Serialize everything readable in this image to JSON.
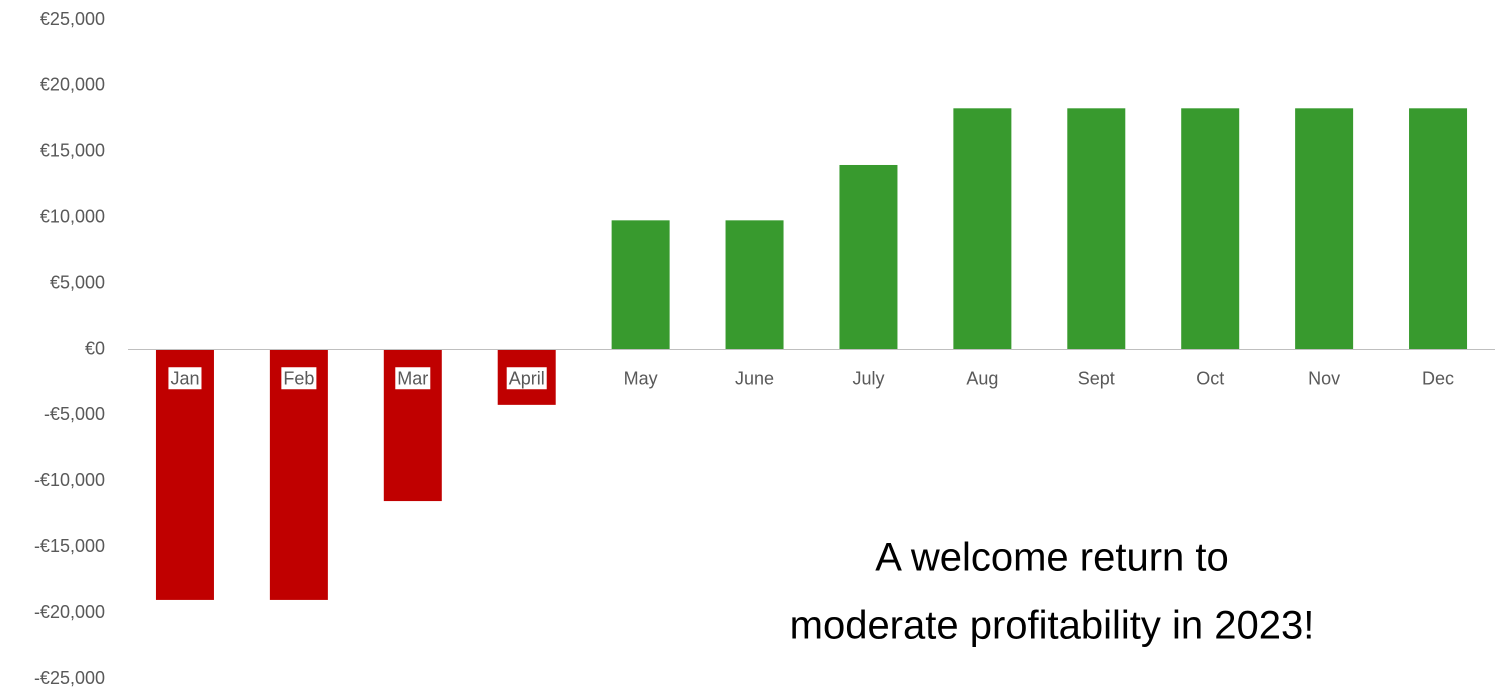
{
  "chart_data": {
    "type": "bar",
    "categories": [
      "Jan",
      "Feb",
      "Mar",
      "April",
      "May",
      "June",
      "July",
      "Aug",
      "Sept",
      "Oct",
      "Nov",
      "Dec"
    ],
    "values": [
      -19000,
      -19000,
      -11500,
      -4200,
      9800,
      9800,
      14000,
      18300,
      18300,
      18300,
      18300,
      18300
    ],
    "colors": [
      "#c00000",
      "#c00000",
      "#c00000",
      "#c00000",
      "#389a2e",
      "#389a2e",
      "#389a2e",
      "#389a2e",
      "#389a2e",
      "#389a2e",
      "#389a2e",
      "#389a2e"
    ],
    "ylim": [
      -25000,
      25000
    ],
    "yticks": [
      {
        "value": -25000,
        "label": "-€25,000"
      },
      {
        "value": -20000,
        "label": "-€20,000"
      },
      {
        "value": -15000,
        "label": "-€15,000"
      },
      {
        "value": -10000,
        "label": "-€10,000"
      },
      {
        "value": -5000,
        "label": "-€5,000"
      },
      {
        "value": 0,
        "label": "€0"
      },
      {
        "value": 5000,
        "label": "€5,000"
      },
      {
        "value": 10000,
        "label": "€10,000"
      },
      {
        "value": 15000,
        "label": "€15,000"
      },
      {
        "value": 20000,
        "label": "€20,000"
      },
      {
        "value": 25000,
        "label": "€25,000"
      }
    ],
    "grid": false,
    "annotation": [
      "A welcome return to",
      "moderate profitability in 2023!"
    ]
  }
}
